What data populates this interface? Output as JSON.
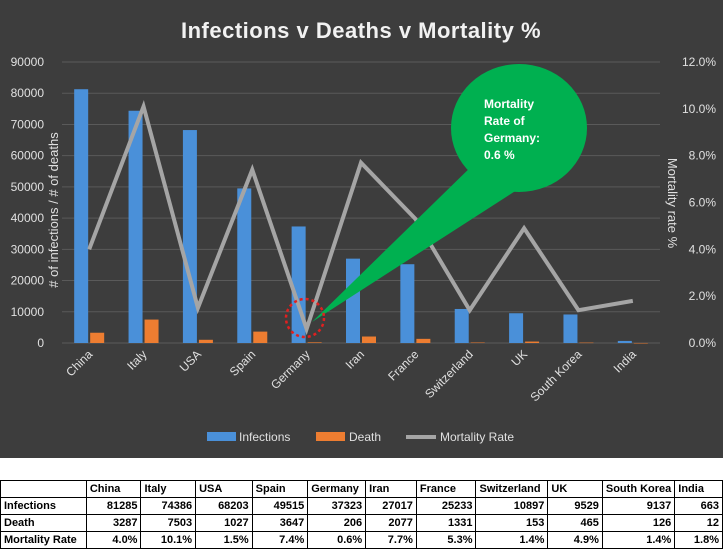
{
  "chart_data": {
    "type": "bar+line",
    "title": "Infections v Deaths v Mortality %",
    "categories": [
      "China",
      "Italy",
      "USA",
      "Spain",
      "Germany",
      "Iran",
      "France",
      "Switzerland",
      "UK",
      "South Korea",
      "India"
    ],
    "series": [
      {
        "name": "Infections",
        "type": "bar",
        "axis": "left",
        "color": "#4a90d9",
        "values": [
          81285,
          74386,
          68203,
          49515,
          37323,
          27017,
          25233,
          10897,
          9529,
          9137,
          663
        ]
      },
      {
        "name": "Death",
        "type": "bar",
        "axis": "left",
        "color": "#ed7d31",
        "values": [
          3287,
          7503,
          1027,
          3647,
          206,
          2077,
          1331,
          153,
          465,
          126,
          12
        ]
      },
      {
        "name": "Mortality Rate",
        "type": "line",
        "axis": "right",
        "color": "#a5a5a5",
        "values": [
          4.0,
          10.1,
          1.5,
          7.4,
          0.6,
          7.7,
          5.3,
          1.4,
          4.9,
          1.4,
          1.8
        ]
      }
    ],
    "ylabel": "# of infections / # of deaths",
    "ylabel_right": "Mortality rate %",
    "ylim": [
      0,
      90000
    ],
    "ylim_right": [
      0,
      12
    ],
    "yticks": [
      "0",
      "10000",
      "20000",
      "30000",
      "40000",
      "50000",
      "60000",
      "70000",
      "80000",
      "90000"
    ],
    "yticks_right": [
      "0.0%",
      "2.0%",
      "4.0%",
      "6.0%",
      "8.0%",
      "10.0%",
      "12.0%"
    ],
    "legend": [
      "Infections",
      "Death",
      "Mortality Rate"
    ],
    "legend_position": "bottom",
    "annotation": {
      "lines": [
        "Mortality",
        "Rate of",
        "Germany:",
        "0.6 %"
      ],
      "color": "#00b050",
      "target": "Germany"
    }
  },
  "table": {
    "headers": [
      "",
      "China",
      "Italy",
      "USA",
      "Spain",
      "Germany",
      "Iran",
      "France",
      "Switzerland",
      "UK",
      "South Korea",
      "India"
    ],
    "rows": [
      {
        "label": "Infections",
        "cells": [
          "81285",
          "74386",
          "68203",
          "49515",
          "37323",
          "27017",
          "25233",
          "10897",
          "9529",
          "9137",
          "663"
        ]
      },
      {
        "label": "Death",
        "cells": [
          "3287",
          "7503",
          "1027",
          "3647",
          "206",
          "2077",
          "1331",
          "153",
          "465",
          "126",
          "12"
        ]
      },
      {
        "label": "Mortality Rate",
        "cells": [
          "4.0%",
          "10.1%",
          "1.5%",
          "7.4%",
          "0.6%",
          "7.7%",
          "5.3%",
          "1.4%",
          "4.9%",
          "1.4%",
          "1.8%"
        ]
      }
    ]
  }
}
